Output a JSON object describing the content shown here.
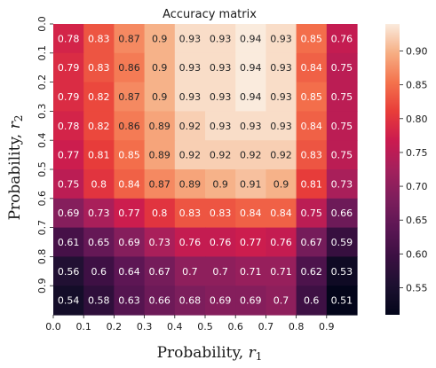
{
  "chart_data": {
    "type": "heatmap",
    "title": "Accuracy matrix",
    "xlabel_main": "Probability, ",
    "xlabel_var": "r",
    "xlabel_sub": "1",
    "ylabel_main": "Probability, ",
    "ylabel_var": "r",
    "ylabel_sub": "2",
    "x_ticks": [
      "0.0",
      "0.1",
      "0.2",
      "0.3",
      "0.4",
      "0.5",
      "0.6",
      "0.7",
      "0.8",
      "0.9"
    ],
    "y_ticks": [
      "0.0",
      "0.1",
      "0.2",
      "0.3",
      "0.4",
      "0.5",
      "0.6",
      "0.7",
      "0.8",
      "0.9"
    ],
    "values": [
      [
        0.78,
        0.83,
        0.87,
        0.9,
        0.93,
        0.93,
        0.94,
        0.93,
        0.85,
        0.76
      ],
      [
        0.79,
        0.83,
        0.86,
        0.9,
        0.93,
        0.93,
        0.94,
        0.93,
        0.84,
        0.75
      ],
      [
        0.79,
        0.82,
        0.87,
        0.9,
        0.93,
        0.93,
        0.94,
        0.93,
        0.85,
        0.75
      ],
      [
        0.78,
        0.82,
        0.86,
        0.89,
        0.92,
        0.93,
        0.93,
        0.93,
        0.84,
        0.75
      ],
      [
        0.77,
        0.81,
        0.85,
        0.89,
        0.92,
        0.92,
        0.92,
        0.92,
        0.83,
        0.75
      ],
      [
        0.75,
        0.8,
        0.84,
        0.87,
        0.89,
        0.9,
        0.91,
        0.9,
        0.81,
        0.73
      ],
      [
        0.69,
        0.73,
        0.77,
        0.8,
        0.83,
        0.83,
        0.84,
        0.84,
        0.75,
        0.66
      ],
      [
        0.61,
        0.65,
        0.69,
        0.73,
        0.76,
        0.76,
        0.77,
        0.76,
        0.67,
        0.59
      ],
      [
        0.56,
        0.6,
        0.64,
        0.67,
        0.7,
        0.7,
        0.71,
        0.71,
        0.62,
        0.53
      ],
      [
        0.54,
        0.58,
        0.63,
        0.66,
        0.68,
        0.69,
        0.69,
        0.7,
        0.6,
        0.51
      ]
    ],
    "color_range": [
      0.51,
      0.94
    ],
    "colorbar_ticks": [
      "0.55",
      "0.60",
      "0.65",
      "0.70",
      "0.75",
      "0.80",
      "0.85",
      "0.90"
    ],
    "colormap": "rocket",
    "grid": false,
    "legend": "colorbar-right"
  }
}
